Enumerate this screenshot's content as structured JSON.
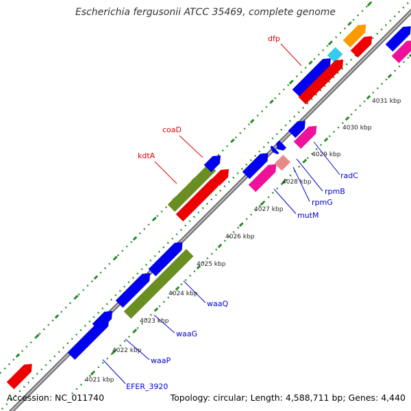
{
  "title": "Escherichia fergusonii ATCC 35469, complete genome",
  "footer": {
    "accession": "Accession: NC_011740",
    "summary": "Topology: circular; Length: 4,588,711 bp; Genes: 4,440"
  },
  "colors": {
    "blue": "#0000ee",
    "red": "#ee0000",
    "olive": "#6b8e23",
    "pink": "#ee1199",
    "salmon": "#e88a8a",
    "cyan": "#33ccee",
    "orange": "#ff9900",
    "tick_green": "#228b22",
    "backbone": "#888888",
    "gene_label": "#0000cc",
    "feature_label": "#dd0000"
  },
  "kbp_ticks": [
    "4021 kbp",
    "4022 kbp",
    "4023 kbp",
    "4024 kbp",
    "4025 kbp",
    "4026 kbp",
    "4027 kbp",
    "4028 kbp",
    "4029 kbp",
    "4030 kbp",
    "4031 kbp"
  ],
  "gene_labels": [
    "EFER_3920",
    "waaP",
    "waaG",
    "waaQ",
    "mutM",
    "rpmG",
    "rpmB",
    "radC"
  ],
  "feature_labels": [
    "kdtA",
    "coaD",
    "dfp"
  ]
}
